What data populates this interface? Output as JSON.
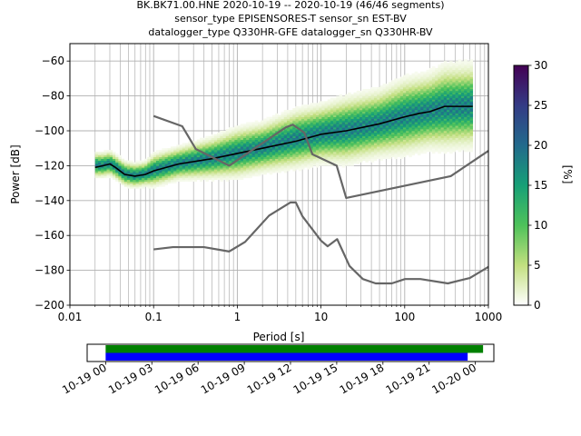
{
  "chart_data": [
    {
      "type": "heatmap",
      "title_lines": [
        "BK.BK71.00.HNE   2020-10-19 -- 2020-10-19  (46/46 segments)",
        "sensor_type EPISENSORES-T sensor_sn EST-BV",
        "datalogger_type Q330HR-GFE datalogger_sn Q330HR-BV"
      ],
      "xlabel": "Period [s]",
      "ylabel": "Power [dB]",
      "xscale": "log",
      "xlim": [
        0.01,
        1000
      ],
      "ylim": [
        -200,
        -50
      ],
      "grid": true,
      "xticks": [
        {
          "v": 0.01,
          "label": "0.01"
        },
        {
          "v": 0.1,
          "label": "0.1"
        },
        {
          "v": 1,
          "label": "1"
        },
        {
          "v": 10,
          "label": "10"
        },
        {
          "v": 100,
          "label": "100"
        },
        {
          "v": 1000,
          "label": "1000"
        }
      ],
      "yticks": [
        {
          "v": -60,
          "label": "−60"
        },
        {
          "v": -80,
          "label": "−80"
        },
        {
          "v": -100,
          "label": "−100"
        },
        {
          "v": -120,
          "label": "−120"
        },
        {
          "v": -140,
          "label": "−140"
        },
        {
          "v": -160,
          "label": "−160"
        },
        {
          "v": -180,
          "label": "−180"
        },
        {
          "v": -200,
          "label": "−200"
        }
      ],
      "colorbar": {
        "label": "[%]",
        "range": [
          0,
          30
        ],
        "ticks": [
          {
            "v": 0,
            "label": "0"
          },
          {
            "v": 5,
            "label": "5"
          },
          {
            "v": 10,
            "label": "10"
          },
          {
            "v": 15,
            "label": "15"
          },
          {
            "v": 20,
            "label": "20"
          },
          {
            "v": 25,
            "label": "25"
          },
          {
            "v": 30,
            "label": "30"
          }
        ],
        "colors": [
          "#ffffff",
          "#c2df7f",
          "#4ec25a",
          "#17a077",
          "#226a8c",
          "#343b85",
          "#440154"
        ]
      },
      "density_band": [
        {
          "x": 0.02,
          "y": -120,
          "w": 3
        },
        {
          "x": 0.025,
          "y": -120,
          "w": 3
        },
        {
          "x": 0.03,
          "y": -119,
          "w": 3
        },
        {
          "x": 0.035,
          "y": -121,
          "w": 3
        },
        {
          "x": 0.045,
          "y": -125,
          "w": 3
        },
        {
          "x": 0.06,
          "y": -126,
          "w": 3
        },
        {
          "x": 0.08,
          "y": -125,
          "w": 3
        },
        {
          "x": 0.1,
          "y": -123,
          "w": 4
        },
        {
          "x": 0.2,
          "y": -119,
          "w": 4
        },
        {
          "x": 0.5,
          "y": -116,
          "w": 5
        },
        {
          "x": 1,
          "y": -113,
          "w": 6
        },
        {
          "x": 2,
          "y": -110,
          "w": 6
        },
        {
          "x": 5,
          "y": -105,
          "w": 7
        },
        {
          "x": 10,
          "y": -102,
          "w": 7
        },
        {
          "x": 20,
          "y": -100,
          "w": 8
        },
        {
          "x": 50,
          "y": -96,
          "w": 8
        },
        {
          "x": 100,
          "y": -92,
          "w": 9
        },
        {
          "x": 200,
          "y": -89,
          "w": 9
        },
        {
          "x": 300,
          "y": -87,
          "w": 10
        },
        {
          "x": 650,
          "y": -86,
          "w": 10
        }
      ],
      "series": [
        {
          "role": "mean",
          "color": "#000000",
          "x": [
            0.02,
            0.025,
            0.03,
            0.035,
            0.045,
            0.06,
            0.08,
            0.1,
            0.2,
            0.5,
            1,
            2,
            5,
            10,
            20,
            50,
            100,
            150,
            200,
            300,
            650
          ],
          "y": [
            -121,
            -120,
            -119,
            -121,
            -125,
            -126,
            -125,
            -123,
            -119,
            -116,
            -113,
            -110,
            -106,
            -102,
            -100,
            -96,
            -92,
            -90,
            -89,
            -86,
            -86
          ]
        },
        {
          "role": "high-noise-model",
          "color": "#666666",
          "x": [
            0.1,
            0.22,
            0.32,
            0.8,
            3.8,
            4.6,
            6.3,
            7.9,
            15.4,
            20,
            354.8,
            1000
          ],
          "y": [
            -91.5,
            -97.4,
            -110.5,
            -120,
            -98,
            -96.5,
            -101,
            -113.5,
            -120,
            -138.5,
            -126,
            -111.5
          ]
        },
        {
          "role": "low-noise-model",
          "color": "#666666",
          "x": [
            0.1,
            0.17,
            0.4,
            0.8,
            1.24,
            2.4,
            4.3,
            5,
            6,
            10,
            12,
            15.6,
            21.9,
            31.6,
            45,
            70,
            101,
            154,
            328,
            600,
            1000
          ],
          "y": [
            -168,
            -166.7,
            -166.7,
            -169.2,
            -163.7,
            -148.6,
            -141.1,
            -141.1,
            -149,
            -163,
            -166.2,
            -162.1,
            -177.5,
            -185,
            -187.5,
            -187.5,
            -185,
            -185,
            -187.5,
            -184.4,
            -178
          ]
        }
      ]
    },
    {
      "type": "timeline",
      "xticks": [
        {
          "v": 0,
          "label": "10-19 00"
        },
        {
          "v": 3,
          "label": "10-19 03"
        },
        {
          "v": 6,
          "label": "10-19 06"
        },
        {
          "v": 9,
          "label": "10-19 09"
        },
        {
          "v": 12,
          "label": "10-19 12"
        },
        {
          "v": 15,
          "label": "10-19 15"
        },
        {
          "v": 18,
          "label": "10-19 18"
        },
        {
          "v": 21,
          "label": "10-19 21"
        },
        {
          "v": 24,
          "label": "10-20 00"
        }
      ],
      "xlim": [
        -1.2,
        25.2
      ],
      "bars": [
        {
          "start": 0,
          "end": 24.5,
          "color": "#008000"
        },
        {
          "start": 0,
          "end": 23.5,
          "color": "#0000ff"
        }
      ]
    }
  ]
}
